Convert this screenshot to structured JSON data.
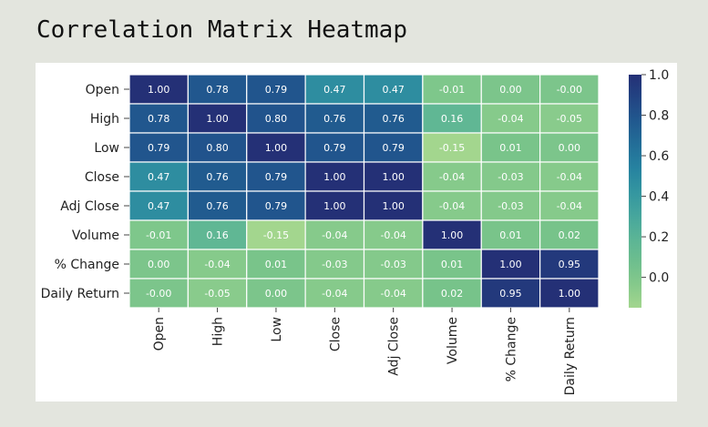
{
  "page": {
    "title": "Correlation Matrix Heatmap"
  },
  "chart_data": {
    "type": "heatmap",
    "title": "",
    "xlabel": "",
    "ylabel": "",
    "row_labels": [
      "Open",
      "High",
      "Low",
      "Close",
      "Adj Close",
      "Volume",
      "% Change",
      "Daily Return"
    ],
    "column_labels": [
      "Open",
      "High",
      "Low",
      "Close",
      "Adj Close",
      "Volume",
      "% Change",
      "Daily Return"
    ],
    "values": [
      [
        1.0,
        0.78,
        0.79,
        0.47,
        0.47,
        -0.01,
        0.0,
        -0.0
      ],
      [
        0.78,
        1.0,
        0.8,
        0.76,
        0.76,
        0.16,
        -0.04,
        -0.05
      ],
      [
        0.79,
        0.8,
        1.0,
        0.79,
        0.79,
        -0.15,
        0.01,
        0.0
      ],
      [
        0.47,
        0.76,
        0.79,
        1.0,
        1.0,
        -0.04,
        -0.03,
        -0.04
      ],
      [
        0.47,
        0.76,
        0.79,
        1.0,
        1.0,
        -0.04,
        -0.03,
        -0.04
      ],
      [
        -0.01,
        0.16,
        -0.15,
        -0.04,
        -0.04,
        1.0,
        0.01,
        0.02
      ],
      [
        0.0,
        -0.04,
        0.01,
        -0.03,
        -0.03,
        0.01,
        1.0,
        0.95
      ],
      [
        -0.0,
        -0.05,
        0.0,
        -0.04,
        -0.04,
        0.02,
        0.95,
        1.0
      ]
    ],
    "cell_labels": [
      [
        "1.00",
        "0.78",
        "0.79",
        "0.47",
        "0.47",
        "-0.01",
        "0.00",
        "-0.00"
      ],
      [
        "0.78",
        "1.00",
        "0.80",
        "0.76",
        "0.76",
        "0.16",
        "-0.04",
        "-0.05"
      ],
      [
        "0.79",
        "0.80",
        "1.00",
        "0.79",
        "0.79",
        "-0.15",
        "0.01",
        "0.00"
      ],
      [
        "0.47",
        "0.76",
        "0.79",
        "1.00",
        "1.00",
        "-0.04",
        "-0.03",
        "-0.04"
      ],
      [
        "0.47",
        "0.76",
        "0.79",
        "1.00",
        "1.00",
        "-0.04",
        "-0.03",
        "-0.04"
      ],
      [
        "-0.01",
        "0.16",
        "-0.15",
        "-0.04",
        "-0.04",
        "1.00",
        "0.01",
        "0.02"
      ],
      [
        "0.00",
        "-0.04",
        "0.01",
        "-0.03",
        "-0.03",
        "0.01",
        "1.00",
        "0.95"
      ],
      [
        "-0.00",
        "-0.05",
        "0.00",
        "-0.04",
        "-0.04",
        "0.02",
        "0.95",
        "1.00"
      ]
    ],
    "color_scale": {
      "name": "YlGnBu",
      "range": [
        -0.15,
        1.0
      ],
      "ticks": [
        1.0,
        0.8,
        0.6,
        0.4,
        0.2,
        0.0
      ],
      "tick_labels": [
        "1.0",
        "0.8",
        "0.6",
        "0.4",
        "0.2",
        "0.0"
      ]
    },
    "legend_placement": "right",
    "grid": false,
    "cell_border_color": "#ffffff",
    "text_color_light": "#ffffff"
  }
}
